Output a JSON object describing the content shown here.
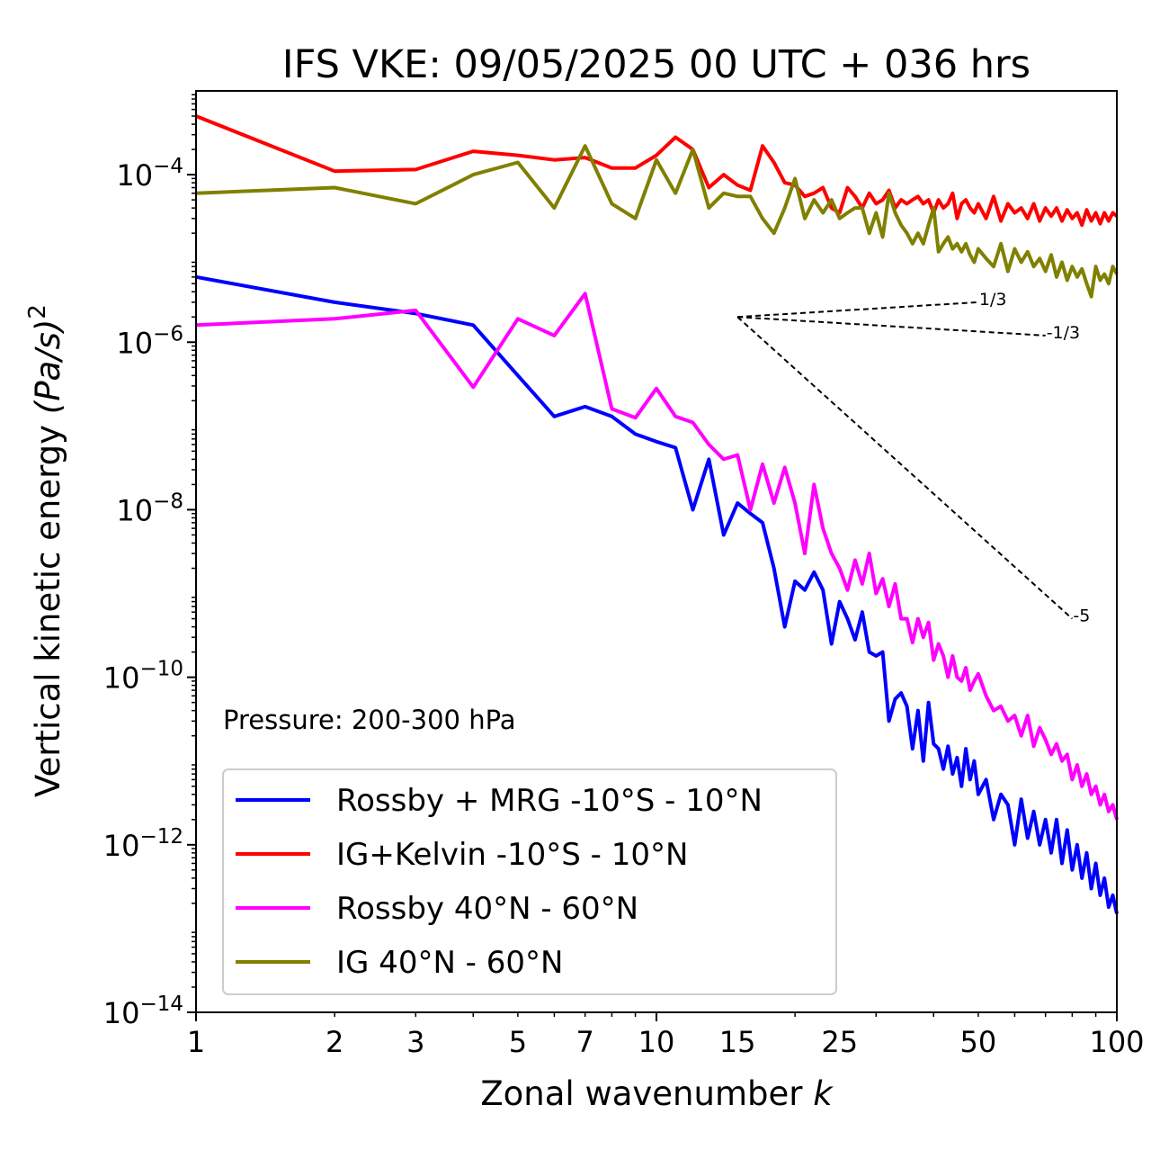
{
  "chart_data": {
    "type": "line",
    "title": "IFS VKE: 09/05/2025 00 UTC + 036 hrs",
    "xlabel": "Zonal wavenumber",
    "xlabel_var": "k",
    "ylabel": "Vertical kinetic energy",
    "ylabel_unit": "(Pa/s)",
    "ylabel_exp": "2",
    "xscale": "log",
    "yscale": "log",
    "xlim": [
      1,
      100
    ],
    "ylim": [
      1e-14,
      0.001
    ],
    "xticks": [
      1,
      2,
      3,
      5,
      7,
      10,
      15,
      25,
      50,
      100
    ],
    "xtick_labels": [
      "1",
      "2",
      "3",
      "5",
      "7",
      "10",
      "15",
      "25",
      "50",
      "100"
    ],
    "yticks": [
      1e-14,
      1e-12,
      1e-10,
      1e-08,
      1e-06,
      0.0001
    ],
    "ytick_base": "10",
    "ytick_exps": [
      "−14",
      "−12",
      "−10",
      "−8",
      "−6",
      "−4"
    ],
    "annotation": "Pressure: 200-300 hPa",
    "legend_position": "lower-left",
    "grid": false,
    "reference_slopes": [
      {
        "label": "1/3",
        "from": [
          15,
          2e-06
        ],
        "to": [
          50,
          3e-06
        ]
      },
      {
        "label": "-1/3",
        "from": [
          15,
          2e-06
        ],
        "to": [
          70,
          1.2e-06
        ]
      },
      {
        "label": "-5",
        "from": [
          15,
          2e-06
        ],
        "to": [
          80,
          5e-10
        ]
      }
    ],
    "series": [
      {
        "name": "Rossby + MRG -10°S - 10°N",
        "color": "#0000ff",
        "x": [
          1,
          2,
          3,
          4,
          5,
          6,
          7,
          8,
          9,
          10,
          11,
          12,
          13,
          14,
          15,
          16,
          17,
          18,
          19,
          20,
          21,
          22,
          23,
          24,
          25,
          26,
          27,
          28,
          29,
          30,
          31,
          32,
          33,
          34,
          35,
          36,
          37,
          38,
          39,
          40,
          41,
          42,
          43,
          44,
          45,
          46,
          47,
          48,
          49,
          50,
          52,
          54,
          56,
          58,
          60,
          62,
          64,
          66,
          68,
          70,
          72,
          74,
          76,
          78,
          80,
          82,
          84,
          86,
          88,
          90,
          92,
          94,
          96,
          98,
          100
        ],
        "y": [
          6e-06,
          3e-06,
          2.2e-06,
          1.6e-06,
          4e-07,
          1.3e-07,
          1.7e-07,
          1.3e-07,
          8e-08,
          6.5e-08,
          5.5e-08,
          1e-08,
          4e-08,
          5e-09,
          1.2e-08,
          9e-09,
          7e-09,
          2e-09,
          4e-10,
          1.4e-09,
          1.1e-09,
          1.8e-09,
          1.1e-09,
          2.5e-10,
          8e-10,
          5e-10,
          2.8e-10,
          6e-10,
          2e-10,
          1.8e-10,
          2e-10,
          3e-11,
          5.5e-11,
          6.5e-11,
          4.5e-11,
          1.4e-11,
          4e-11,
          1e-11,
          5e-11,
          1.6e-11,
          1.4e-11,
          8e-12,
          1.5e-11,
          7e-12,
          1.1e-11,
          5e-12,
          1.4e-11,
          6e-12,
          1e-11,
          4e-12,
          6e-12,
          2e-12,
          4e-12,
          3e-12,
          1e-12,
          3.5e-12,
          1.2e-12,
          2.5e-12,
          1e-12,
          2e-12,
          8e-13,
          2e-12,
          6e-13,
          1.5e-12,
          5e-13,
          1e-12,
          4e-13,
          8e-13,
          3e-13,
          6e-13,
          2.5e-13,
          4e-13,
          1.8e-13,
          2.5e-13,
          1.5e-13
        ]
      },
      {
        "name": "IG+Kelvin -10°S - 10°N",
        "color": "#ff0000",
        "x": [
          1,
          2,
          3,
          4,
          5,
          6,
          7,
          8,
          9,
          10,
          11,
          12,
          13,
          14,
          15,
          16,
          17,
          18,
          19,
          20,
          21,
          22,
          23,
          24,
          25,
          26,
          27,
          28,
          29,
          30,
          31,
          32,
          33,
          34,
          35,
          36,
          37,
          38,
          39,
          40,
          41,
          42,
          43,
          44,
          45,
          46,
          47,
          48,
          49,
          50,
          52,
          54,
          56,
          58,
          60,
          62,
          64,
          66,
          68,
          70,
          72,
          74,
          76,
          78,
          80,
          82,
          84,
          86,
          88,
          90,
          92,
          94,
          96,
          98,
          100
        ],
        "y": [
          0.0005,
          0.00011,
          0.000115,
          0.00019,
          0.00017,
          0.00015,
          0.00016,
          0.00012,
          0.00012,
          0.00017,
          0.00028,
          0.0002,
          7e-05,
          0.0001,
          7.5e-05,
          6.5e-05,
          0.00022,
          0.00014,
          8e-05,
          7.5e-05,
          5.5e-05,
          6e-05,
          7e-05,
          4e-05,
          3.5e-05,
          7e-05,
          5.5e-05,
          4e-05,
          6e-05,
          4.5e-05,
          5e-05,
          6.5e-05,
          4e-05,
          5e-05,
          4.5e-05,
          5e-05,
          5.5e-05,
          4.5e-05,
          5e-05,
          3.5e-05,
          5e-05,
          4e-05,
          4.5e-05,
          6e-05,
          3e-05,
          4.5e-05,
          5e-05,
          4e-05,
          3.5e-05,
          4.5e-05,
          3e-05,
          5.5e-05,
          2.8e-05,
          4.5e-05,
          3.5e-05,
          4e-05,
          3e-05,
          4.5e-05,
          2.8e-05,
          4e-05,
          3.2e-05,
          4e-05,
          2.8e-05,
          3.8e-05,
          3e-05,
          3.5e-05,
          2.5e-05,
          3.8e-05,
          2.8e-05,
          3.5e-05,
          2.6e-05,
          3.5e-05,
          2.8e-05,
          3.5e-05,
          3.2e-05
        ]
      },
      {
        "name": "Rossby 40°N - 60°N",
        "color": "#ff00ff",
        "x": [
          1,
          2,
          3,
          4,
          5,
          6,
          7,
          8,
          9,
          10,
          11,
          12,
          13,
          14,
          15,
          16,
          17,
          18,
          19,
          20,
          21,
          22,
          23,
          24,
          25,
          26,
          27,
          28,
          29,
          30,
          31,
          32,
          33,
          34,
          35,
          36,
          37,
          38,
          39,
          40,
          41,
          42,
          43,
          44,
          45,
          46,
          47,
          48,
          49,
          50,
          52,
          54,
          56,
          58,
          60,
          62,
          64,
          66,
          68,
          70,
          72,
          74,
          76,
          78,
          80,
          82,
          84,
          86,
          88,
          90,
          92,
          94,
          96,
          98,
          100
        ],
        "y": [
          1.6e-06,
          1.9e-06,
          2.4e-06,
          2.9e-07,
          1.9e-06,
          1.2e-06,
          3.8e-06,
          1.6e-07,
          1.25e-07,
          2.8e-07,
          1.3e-07,
          1.1e-07,
          6e-08,
          4e-08,
          4.5e-08,
          1e-08,
          3.5e-08,
          1.2e-08,
          3.2e-08,
          1.2e-08,
          3e-09,
          2e-08,
          6e-09,
          3e-09,
          2e-09,
          1.1e-09,
          2.5e-09,
          1.3e-09,
          3e-09,
          1e-09,
          1.5e-09,
          7e-10,
          1.3e-09,
          5e-10,
          5e-10,
          2.6e-10,
          5e-10,
          3e-10,
          4.5e-10,
          1.6e-10,
          2.5e-10,
          1.8e-10,
          1e-10,
          1.8e-10,
          1e-10,
          9e-11,
          1.3e-10,
          7e-11,
          9e-11,
          1.1e-10,
          6e-11,
          4e-11,
          4.5e-11,
          3e-11,
          3.5e-11,
          2e-11,
          3.5e-11,
          1.5e-11,
          2.5e-11,
          1.8e-11,
          1.2e-11,
          1.6e-11,
          1e-11,
          1.2e-11,
          6e-12,
          9e-12,
          5e-12,
          7e-12,
          4e-12,
          5e-12,
          3e-12,
          4e-12,
          2.5e-12,
          3e-12,
          2e-12
        ]
      },
      {
        "name": "IG 40°N - 60°N",
        "color": "#808000",
        "x": [
          1,
          2,
          3,
          4,
          5,
          6,
          7,
          8,
          9,
          10,
          11,
          12,
          13,
          14,
          15,
          16,
          17,
          18,
          19,
          20,
          21,
          22,
          23,
          24,
          25,
          26,
          27,
          28,
          29,
          30,
          31,
          32,
          33,
          34,
          35,
          36,
          37,
          38,
          39,
          40,
          41,
          42,
          43,
          44,
          45,
          46,
          47,
          48,
          49,
          50,
          52,
          54,
          56,
          58,
          60,
          62,
          64,
          66,
          68,
          70,
          72,
          74,
          76,
          78,
          80,
          82,
          84,
          86,
          88,
          90,
          92,
          94,
          96,
          98,
          100
        ],
        "y": [
          6e-05,
          7e-05,
          4.5e-05,
          0.0001,
          0.00014,
          4e-05,
          0.00022,
          4.5e-05,
          3e-05,
          0.00015,
          6e-05,
          0.0002,
          4e-05,
          6e-05,
          5.5e-05,
          5.5e-05,
          3e-05,
          2e-05,
          4e-05,
          9e-05,
          3e-05,
          5e-05,
          3.5e-05,
          5e-05,
          3e-05,
          3.5e-05,
          4e-05,
          4e-05,
          2e-05,
          3.5e-05,
          1.8e-05,
          6e-05,
          3.5e-05,
          2.5e-05,
          2e-05,
          1.5e-05,
          2e-05,
          1.5e-05,
          2.5e-05,
          4e-05,
          1.2e-05,
          1.5e-05,
          1.8e-05,
          1.3e-05,
          1.5e-05,
          1.2e-05,
          1.5e-05,
          1.1e-05,
          9e-06,
          1.3e-05,
          1e-05,
          8e-06,
          1.5e-05,
          7e-06,
          1.3e-05,
          9e-06,
          1.2e-05,
          8e-06,
          1e-05,
          7e-06,
          1.1e-05,
          6e-06,
          9e-06,
          5.5e-06,
          8e-06,
          6e-06,
          7.5e-06,
          5e-06,
          3.5e-06,
          8e-06,
          5.5e-06,
          6.5e-06,
          5e-06,
          8e-06,
          6.5e-06
        ]
      }
    ]
  }
}
